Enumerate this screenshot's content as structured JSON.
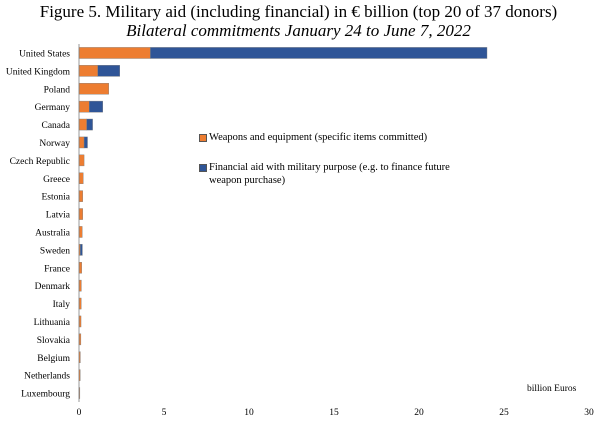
{
  "chart_data": {
    "type": "bar",
    "orientation": "horizontal",
    "stacked": true,
    "title": "Figure 5. Military aid (including financial) in € billion (top 20 of 37 donors)",
    "subtitle": "Bilateral commitments January 24 to June 7, 2022",
    "xlabel": "billion Euros",
    "xlim": [
      0,
      30
    ],
    "xticks": [
      0,
      5,
      10,
      15,
      20,
      25,
      30
    ],
    "grid": false,
    "legend_position": "center-right",
    "categories": [
      "United States",
      "United Kingdom",
      "Poland",
      "Germany",
      "Canada",
      "Norway",
      "Czech Republic",
      "Greece",
      "Estonia",
      "Latvia",
      "Australia",
      "Sweden",
      "France",
      "Denmark",
      "Italy",
      "Lithuania",
      "Slovakia",
      "Belgium",
      "Netherlands",
      "Luxembourg"
    ],
    "series": [
      {
        "name": "Weapons and equipment (specific items committed)",
        "color": "#ED7D31",
        "values": [
          4.2,
          1.1,
          1.75,
          0.6,
          0.45,
          0.3,
          0.3,
          0.25,
          0.22,
          0.22,
          0.19,
          0.08,
          0.16,
          0.14,
          0.13,
          0.12,
          0.11,
          0.08,
          0.07,
          0.05
        ]
      },
      {
        "name": "Financial aid with military purpose (e.g. to finance future weapon purchase)",
        "color": "#2F5597",
        "values": [
          19.8,
          1.3,
          0.0,
          0.8,
          0.35,
          0.2,
          0.0,
          0.0,
          0.0,
          0.0,
          0.0,
          0.12,
          0.0,
          0.0,
          0.0,
          0.0,
          0.0,
          0.0,
          0.0,
          0.0
        ]
      }
    ]
  }
}
